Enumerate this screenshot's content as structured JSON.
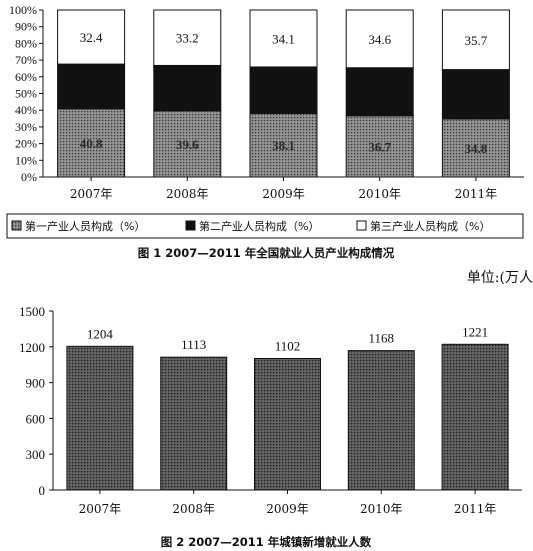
{
  "chart_data": [
    {
      "type": "bar",
      "stacked": true,
      "percent": true,
      "categories": [
        "2007年",
        "2008年",
        "2009年",
        "2010年",
        "2011年"
      ],
      "series": [
        {
          "name": "第一产业人员构成（%）",
          "values": [
            40.8,
            39.6,
            38.1,
            36.7,
            34.8
          ],
          "color": "#6e6e6e"
        },
        {
          "name": "第二产业人员构成（%）",
          "values": [
            26.8,
            27.2,
            27.8,
            28.7,
            29.5
          ],
          "color": "#111111"
        },
        {
          "name": "第三产业人员构成（%）",
          "values": [
            32.4,
            33.2,
            34.1,
            34.6,
            35.7
          ],
          "color": "#ffffff"
        }
      ],
      "y_ticks": [
        "0%",
        "10%",
        "20%",
        "30%",
        "40%",
        "50%",
        "60%",
        "70%",
        "80%",
        "90%",
        "100%"
      ],
      "ylim": [
        0,
        100
      ],
      "legend_position": "bottom",
      "title": "图 1   2007—2011 年全国就业人员产业构成情况"
    },
    {
      "type": "bar",
      "categories": [
        "2007年",
        "2008年",
        "2009年",
        "2010年",
        "2011年"
      ],
      "values": [
        1204,
        1113,
        1102,
        1168,
        1221
      ],
      "y_ticks": [
        "0",
        "300",
        "600",
        "900",
        "1200",
        "1500"
      ],
      "ylim": [
        0,
        1500
      ],
      "unit_label": "单位:(万人",
      "title": "图 2   2007—2011 年城镇新增就业人数"
    }
  ]
}
